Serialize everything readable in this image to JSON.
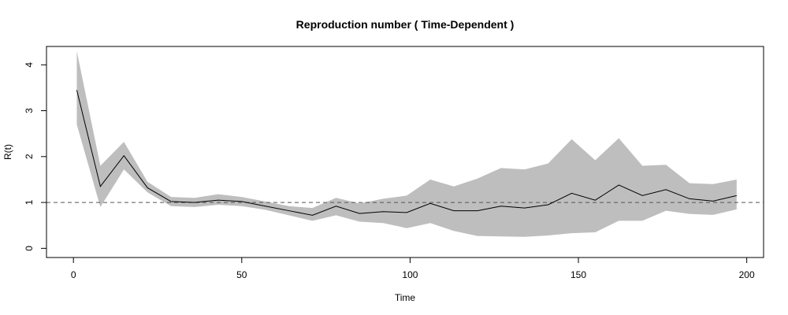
{
  "chart_data": {
    "type": "line",
    "title": "Reproduction number ( Time-Dependent )",
    "xlabel": "Time",
    "ylabel": "R(t)",
    "xlim": [
      -8,
      205
    ],
    "ylim": [
      -0.2,
      4.4
    ],
    "xticks": [
      0,
      50,
      100,
      150,
      200
    ],
    "yticks": [
      0,
      1,
      2,
      3,
      4
    ],
    "reference_line": 1,
    "grid": false,
    "colors": {
      "band": "#bebebe",
      "line": "#000000",
      "reference": "#555555"
    },
    "x": [
      1,
      8,
      15,
      22,
      29,
      36,
      43,
      50,
      57,
      64,
      71,
      78,
      85,
      92,
      99,
      106,
      113,
      120,
      127,
      134,
      141,
      148,
      155,
      162,
      169,
      176,
      183,
      190,
      197
    ],
    "series": [
      {
        "values": [
          3.45,
          1.35,
          2.02,
          1.32,
          1.02,
          1.0,
          1.05,
          1.02,
          0.92,
          0.82,
          0.72,
          0.92,
          0.76,
          0.8,
          0.78,
          0.98,
          0.82,
          0.82,
          0.92,
          0.88,
          0.95,
          1.2,
          1.05,
          1.38,
          1.15,
          1.28,
          1.08,
          1.03,
          1.15
        ]
      }
    ],
    "band": {
      "lower": [
        2.7,
        0.9,
        1.72,
        1.22,
        0.92,
        0.9,
        0.95,
        0.92,
        0.84,
        0.72,
        0.6,
        0.72,
        0.58,
        0.55,
        0.44,
        0.55,
        0.38,
        0.27,
        0.26,
        0.25,
        0.28,
        0.33,
        0.35,
        0.6,
        0.6,
        0.82,
        0.75,
        0.73,
        0.85
      ],
      "upper": [
        4.3,
        1.8,
        2.32,
        1.45,
        1.12,
        1.1,
        1.18,
        1.12,
        1.02,
        0.92,
        0.88,
        1.1,
        0.98,
        1.08,
        1.15,
        1.5,
        1.35,
        1.52,
        1.75,
        1.72,
        1.85,
        2.38,
        1.92,
        2.4,
        1.8,
        1.82,
        1.42,
        1.4,
        1.5
      ]
    }
  }
}
